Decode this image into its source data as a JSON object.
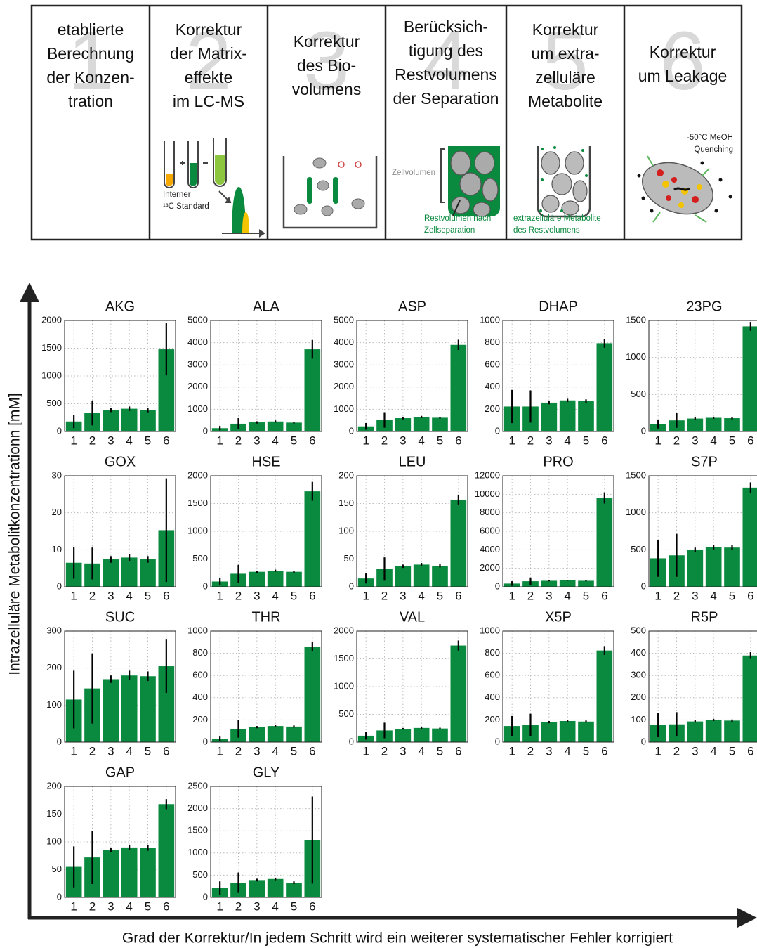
{
  "steps": [
    {
      "number": "1",
      "lines": [
        "etablierte",
        "Berechnung",
        "der Konzen-",
        "tration"
      ],
      "notes": []
    },
    {
      "number": "2",
      "lines": [
        "Korrektur",
        "der Matrix-",
        "effekte",
        "im LC-MS"
      ],
      "notes": [
        "Interner",
        "¹³C Standard"
      ]
    },
    {
      "number": "3",
      "lines": [
        "Korrektur",
        "des Bio-",
        "volumens"
      ],
      "notes": []
    },
    {
      "number": "4",
      "lines": [
        "Berücksich-",
        "tigung des",
        "Restvolumens",
        "der Separation"
      ],
      "notes": [
        "Zellvolumen",
        "Restvolumen nach",
        "Zellseparation"
      ]
    },
    {
      "number": "5",
      "lines": [
        "Korrektur",
        "um extra-",
        "zelluläre",
        "Metabolite"
      ],
      "notes": [
        "extrazelluläre Metabolite",
        "des Restvolumens"
      ]
    },
    {
      "number": "6",
      "lines": [
        "Korrektur",
        "um Leakage"
      ],
      "notes": [
        "-50°C MeOH",
        "Quenching"
      ]
    }
  ],
  "y_label": "Intrazelluläre Metabolitkonzentrationn [mM]",
  "x_label": "Grad der Korrektur/In jedem Schritt wird ein weiterer systematischer Fehler korrigiert",
  "chart_data": [
    {
      "type": "bar",
      "title": "AKG",
      "categories": [
        "1",
        "2",
        "3",
        "4",
        "5",
        "6"
      ],
      "values": [
        180,
        330,
        390,
        410,
        385,
        1480
      ],
      "errors": [
        120,
        220,
        40,
        40,
        40,
        470
      ],
      "color": "#0a8a3e",
      "ylim": [
        0,
        2000
      ],
      "yticks": [
        0,
        500,
        1000,
        1500,
        2000
      ],
      "grid": true
    },
    {
      "type": "bar",
      "title": "ALA",
      "categories": [
        "1",
        "2",
        "3",
        "4",
        "5",
        "6"
      ],
      "values": [
        150,
        350,
        410,
        450,
        400,
        3700
      ],
      "errors": [
        100,
        250,
        50,
        50,
        40,
        420
      ],
      "color": "#0a8a3e",
      "ylim": [
        0,
        5000
      ],
      "yticks": [
        0,
        1000,
        2000,
        3000,
        4000,
        5000
      ],
      "grid": true
    },
    {
      "type": "bar",
      "title": "ASP",
      "categories": [
        "1",
        "2",
        "3",
        "4",
        "5",
        "6"
      ],
      "values": [
        230,
        520,
        600,
        650,
        620,
        3900
      ],
      "errors": [
        150,
        350,
        50,
        50,
        40,
        230
      ],
      "color": "#0a8a3e",
      "ylim": [
        0,
        5000
      ],
      "yticks": [
        0,
        1000,
        2000,
        3000,
        4000,
        5000
      ],
      "grid": true
    },
    {
      "type": "bar",
      "title": "DHAP",
      "categories": [
        "1",
        "2",
        "3",
        "4",
        "5",
        "6"
      ],
      "values": [
        225,
        225,
        260,
        280,
        275,
        795
      ],
      "errors": [
        150,
        145,
        15,
        15,
        15,
        40
      ],
      "color": "#0a8a3e",
      "ylim": [
        0,
        1000
      ],
      "yticks": [
        0,
        200,
        400,
        600,
        800,
        1000
      ],
      "grid": true
    },
    {
      "type": "bar",
      "title": "23PG",
      "categories": [
        "1",
        "2",
        "3",
        "4",
        "5",
        "6"
      ],
      "values": [
        100,
        150,
        175,
        185,
        180,
        1420
      ],
      "errors": [
        60,
        100,
        15,
        15,
        15,
        60
      ],
      "color": "#0a8a3e",
      "ylim": [
        0,
        1500
      ],
      "yticks": [
        0,
        500,
        1000,
        1500
      ],
      "grid": true
    },
    {
      "type": "bar",
      "title": "GOX",
      "categories": [
        "1",
        "2",
        "3",
        "4",
        "5",
        "6"
      ],
      "values": [
        6.5,
        6.3,
        7.4,
        7.9,
        7.4,
        15.3
      ],
      "errors": [
        4.3,
        4.3,
        0.9,
        0.9,
        0.9,
        14
      ],
      "color": "#0a8a3e",
      "ylim": [
        0,
        30
      ],
      "yticks": [
        0,
        10,
        20,
        30
      ],
      "grid": true
    },
    {
      "type": "bar",
      "title": "HSE",
      "categories": [
        "1",
        "2",
        "3",
        "4",
        "5",
        "6"
      ],
      "values": [
        95,
        235,
        270,
        290,
        270,
        1720
      ],
      "errors": [
        60,
        160,
        20,
        20,
        20,
        170
      ],
      "color": "#0a8a3e",
      "ylim": [
        0,
        2000
      ],
      "yticks": [
        0,
        500,
        1000,
        1500,
        2000
      ],
      "grid": true
    },
    {
      "type": "bar",
      "title": "LEU",
      "categories": [
        "1",
        "2",
        "3",
        "4",
        "5",
        "6"
      ],
      "values": [
        15,
        32,
        37,
        40,
        38,
        157
      ],
      "errors": [
        9,
        21,
        3,
        3,
        3,
        9
      ],
      "color": "#0a8a3e",
      "ylim": [
        0,
        200
      ],
      "yticks": [
        0,
        50,
        100,
        150,
        200
      ],
      "grid": true
    },
    {
      "type": "bar",
      "title": "PRO",
      "categories": [
        "1",
        "2",
        "3",
        "4",
        "5",
        "6"
      ],
      "values": [
        350,
        600,
        650,
        700,
        650,
        9600
      ],
      "errors": [
        250,
        400,
        60,
        60,
        60,
        600
      ],
      "color": "#0a8a3e",
      "ylim": [
        0,
        12000
      ],
      "yticks": [
        0,
        2000,
        4000,
        6000,
        8000,
        10000,
        12000
      ],
      "grid": true
    },
    {
      "type": "bar",
      "title": "S7P",
      "categories": [
        "1",
        "2",
        "3",
        "4",
        "5",
        "6"
      ],
      "values": [
        385,
        425,
        500,
        535,
        530,
        1340
      ],
      "errors": [
        250,
        290,
        30,
        30,
        30,
        70
      ],
      "color": "#0a8a3e",
      "ylim": [
        0,
        1500
      ],
      "yticks": [
        0,
        500,
        1000,
        1500
      ],
      "grid": true
    },
    {
      "type": "bar",
      "title": "SUC",
      "categories": [
        "1",
        "2",
        "3",
        "4",
        "5",
        "6"
      ],
      "values": [
        115,
        145,
        170,
        180,
        178,
        205
      ],
      "errors": [
        78,
        95,
        10,
        13,
        13,
        72
      ],
      "color": "#0a8a3e",
      "ylim": [
        0,
        300
      ],
      "yticks": [
        0,
        100,
        200,
        300
      ],
      "grid": true
    },
    {
      "type": "bar",
      "title": "THR",
      "categories": [
        "1",
        "2",
        "3",
        "4",
        "5",
        "6"
      ],
      "values": [
        30,
        120,
        135,
        145,
        140,
        860
      ],
      "errors": [
        20,
        80,
        10,
        10,
        10,
        40
      ],
      "color": "#0a8a3e",
      "ylim": [
        0,
        1000
      ],
      "yticks": [
        0,
        200,
        400,
        600,
        800,
        1000
      ],
      "grid": true
    },
    {
      "type": "bar",
      "title": "VAL",
      "categories": [
        "1",
        "2",
        "3",
        "4",
        "5",
        "6"
      ],
      "values": [
        115,
        210,
        240,
        255,
        245,
        1740
      ],
      "errors": [
        70,
        140,
        15,
        15,
        15,
        90
      ],
      "color": "#0a8a3e",
      "ylim": [
        0,
        2000
      ],
      "yticks": [
        0,
        500,
        1000,
        1500,
        2000
      ],
      "grid": true
    },
    {
      "type": "bar",
      "title": "X5P",
      "categories": [
        "1",
        "2",
        "3",
        "4",
        "5",
        "6"
      ],
      "values": [
        145,
        155,
        180,
        190,
        185,
        825
      ],
      "errors": [
        90,
        100,
        10,
        10,
        10,
        40
      ],
      "color": "#0a8a3e",
      "ylim": [
        0,
        1000
      ],
      "yticks": [
        0,
        200,
        400,
        600,
        800,
        1000
      ],
      "grid": true
    },
    {
      "type": "bar",
      "title": "R5P",
      "categories": [
        "1",
        "2",
        "3",
        "4",
        "5",
        "6"
      ],
      "values": [
        77,
        80,
        93,
        100,
        97,
        390
      ],
      "errors": [
        55,
        55,
        5,
        5,
        5,
        15
      ],
      "color": "#0a8a3e",
      "ylim": [
        0,
        500
      ],
      "yticks": [
        0,
        100,
        200,
        300,
        400,
        500
      ],
      "grid": true
    },
    {
      "type": "bar",
      "title": "GAP",
      "categories": [
        "1",
        "2",
        "3",
        "4",
        "5",
        "6"
      ],
      "values": [
        55,
        72,
        85,
        90,
        89,
        168
      ],
      "errors": [
        37,
        48,
        4,
        5,
        5,
        9
      ],
      "color": "#0a8a3e",
      "ylim": [
        0,
        200
      ],
      "yticks": [
        0,
        50,
        100,
        150,
        200
      ],
      "grid": true
    },
    {
      "type": "bar",
      "title": "GLY",
      "categories": [
        "1",
        "2",
        "3",
        "4",
        "5",
        "6"
      ],
      "values": [
        210,
        330,
        390,
        415,
        330,
        1290
      ],
      "errors": [
        150,
        230,
        30,
        30,
        30,
        980
      ],
      "color": "#0a8a3e",
      "ylim": [
        0,
        2500
      ],
      "yticks": [
        0,
        500,
        1000,
        1500,
        2000,
        2500
      ],
      "grid": true
    }
  ]
}
